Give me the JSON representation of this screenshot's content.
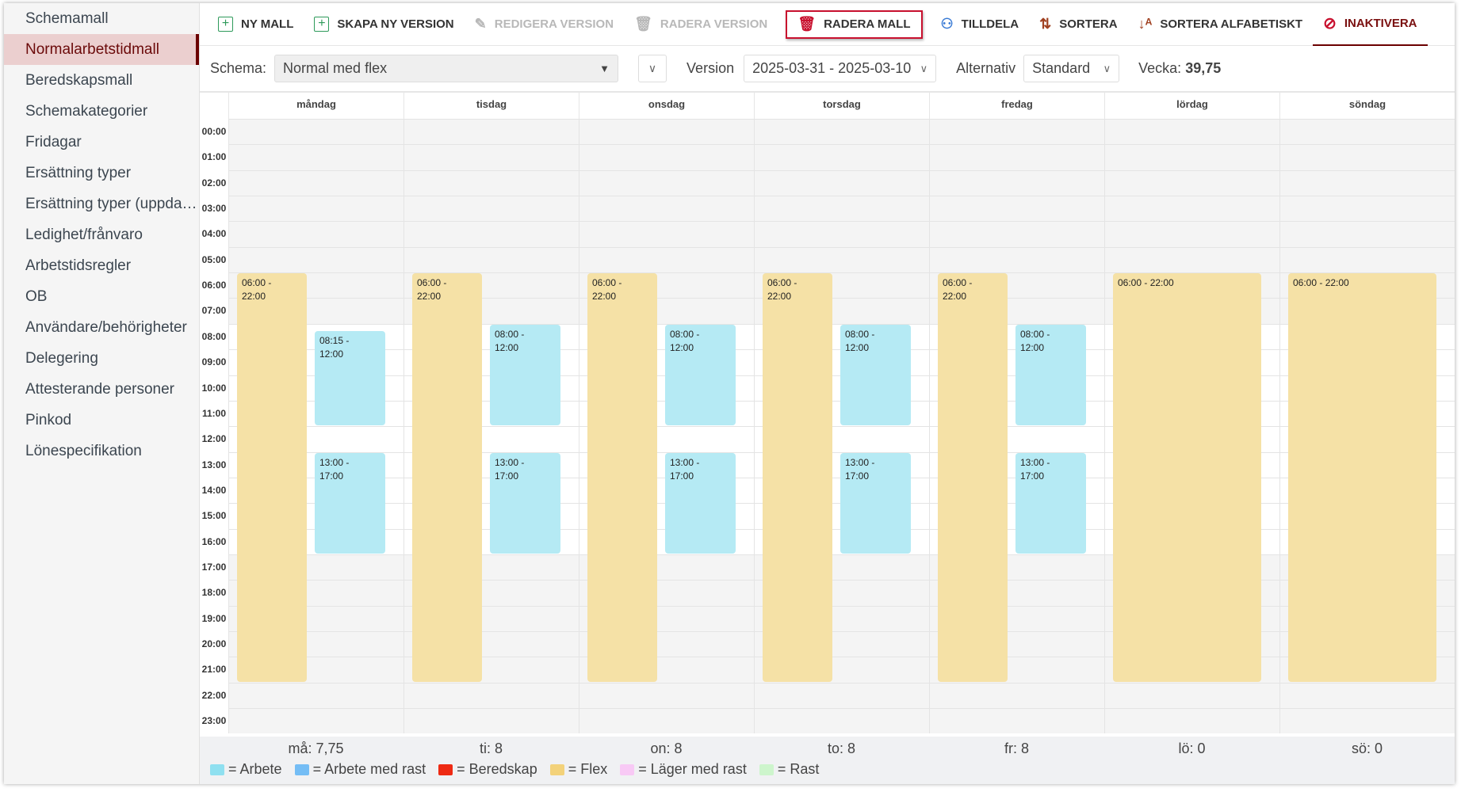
{
  "sidebar": {
    "active": 1,
    "items": [
      {
        "label": "Schemamall"
      },
      {
        "label": "Normalarbetstidmall"
      },
      {
        "label": "Beredskapsmall"
      },
      {
        "label": "Schemakategorier"
      },
      {
        "label": "Fridagar"
      },
      {
        "label": "Ersättning typer"
      },
      {
        "label": "Ersättning typer (uppdaterad)"
      },
      {
        "label": "Ledighet/frånvaro"
      },
      {
        "label": "Arbetstidsregler"
      },
      {
        "label": "OB"
      },
      {
        "label": "Användare/behörigheter"
      },
      {
        "label": "Delegering"
      },
      {
        "label": "Attesterande personer"
      },
      {
        "label": "Pinkod"
      },
      {
        "label": "Lönespecifikation"
      }
    ]
  },
  "toolbar": {
    "items": [
      {
        "label": "NY MALL",
        "icon": "plus-box-icon",
        "state": "enabled"
      },
      {
        "label": "SKAPA NY VERSION",
        "icon": "plus-box-icon",
        "state": "enabled"
      },
      {
        "label": "REDIGERA VERSION",
        "icon": "pencil-icon",
        "state": "disabled"
      },
      {
        "label": "RADERA VERSION",
        "icon": "trash-icon",
        "state": "disabled"
      },
      {
        "label": "RADERA MALL",
        "icon": "trash-red-icon",
        "state": "highlighted"
      },
      {
        "label": "TILLDELA",
        "icon": "users-add-icon",
        "state": "enabled"
      },
      {
        "label": "SORTERA",
        "icon": "sort-icon",
        "state": "enabled"
      },
      {
        "label": "SORTERA ALFABETISKT",
        "icon": "sort-alpha-icon",
        "state": "enabled"
      },
      {
        "label": "INAKTIVERA",
        "icon": "block-icon",
        "state": "active"
      }
    ]
  },
  "filters": {
    "schema_label": "Schema:",
    "schema_value": "Normal med flex",
    "version_label": "Version",
    "version_value": "2025-03-31 - 2025-03-10",
    "alt_label": "Alternativ",
    "alt_value": "Standard",
    "week_label": "Vecka:",
    "week_value": "39,75"
  },
  "calendar": {
    "days": [
      "måndag",
      "tisdag",
      "onsdag",
      "torsdag",
      "fredag",
      "lördag",
      "söndag"
    ],
    "hours": [
      "00:00",
      "01:00",
      "02:00",
      "03:00",
      "04:00",
      "05:00",
      "06:00",
      "07:00",
      "08:00",
      "09:00",
      "10:00",
      "11:00",
      "12:00",
      "13:00",
      "14:00",
      "15:00",
      "16:00",
      "17:00",
      "18:00",
      "19:00",
      "20:00",
      "21:00",
      "22:00",
      "23:00"
    ],
    "workday_hours": [
      8,
      17
    ],
    "events": [
      {
        "day": 0,
        "type": "Flex",
        "start": "06:00",
        "end": "22:00",
        "label": "06:00 - 22:00"
      },
      {
        "day": 0,
        "type": "Arbete",
        "start": "08:15",
        "end": "12:00",
        "label": "08:15 - 12:00"
      },
      {
        "day": 0,
        "type": "Arbete",
        "start": "13:00",
        "end": "17:00",
        "label": "13:00 - 17:00"
      },
      {
        "day": 1,
        "type": "Flex",
        "start": "06:00",
        "end": "22:00",
        "label": "06:00 - 22:00"
      },
      {
        "day": 1,
        "type": "Arbete",
        "start": "08:00",
        "end": "12:00",
        "label": "08:00 - 12:00"
      },
      {
        "day": 1,
        "type": "Arbete",
        "start": "13:00",
        "end": "17:00",
        "label": "13:00 - 17:00"
      },
      {
        "day": 2,
        "type": "Flex",
        "start": "06:00",
        "end": "22:00",
        "label": "06:00 - 22:00"
      },
      {
        "day": 2,
        "type": "Arbete",
        "start": "08:00",
        "end": "12:00",
        "label": "08:00 - 12:00"
      },
      {
        "day": 2,
        "type": "Arbete",
        "start": "13:00",
        "end": "17:00",
        "label": "13:00 - 17:00"
      },
      {
        "day": 3,
        "type": "Flex",
        "start": "06:00",
        "end": "22:00",
        "label": "06:00 - 22:00"
      },
      {
        "day": 3,
        "type": "Arbete",
        "start": "08:00",
        "end": "12:00",
        "label": "08:00 - 12:00"
      },
      {
        "day": 3,
        "type": "Arbete",
        "start": "13:00",
        "end": "17:00",
        "label": "13:00 - 17:00"
      },
      {
        "day": 4,
        "type": "Flex",
        "start": "06:00",
        "end": "22:00",
        "label": "06:00 - 22:00"
      },
      {
        "day": 4,
        "type": "Arbete",
        "start": "08:00",
        "end": "12:00",
        "label": "08:00 - 12:00"
      },
      {
        "day": 4,
        "type": "Arbete",
        "start": "13:00",
        "end": "17:00",
        "label": "13:00 - 17:00"
      },
      {
        "day": 5,
        "type": "Flex",
        "start": "06:00",
        "end": "22:00",
        "label": "06:00 - 22:00",
        "full": true
      },
      {
        "day": 6,
        "type": "Flex",
        "start": "06:00",
        "end": "22:00",
        "label": "06:00 - 22:00",
        "full": true
      }
    ]
  },
  "summary": [
    "må: 7,75",
    "ti: 8",
    "on: 8",
    "to: 8",
    "fr: 8",
    "lö: 0",
    "sö: 0"
  ],
  "legend": [
    {
      "label": "= Arbete",
      "color": "#8fe0f0"
    },
    {
      "label": "= Arbete med rast",
      "color": "#74bdf5"
    },
    {
      "label": "= Beredskap",
      "color": "#ee2a13"
    },
    {
      "label": "= Flex",
      "color": "#f3d27a"
    },
    {
      "label": "= Läger med rast",
      "color": "#f8c9f5"
    },
    {
      "label": "= Rast",
      "color": "#cdf5cc"
    }
  ],
  "colors": {
    "Flex": "#f5e1a6",
    "Arbete": "#b5eaf4",
    "accent": "#6b0000",
    "highlight": "#c8102e"
  }
}
